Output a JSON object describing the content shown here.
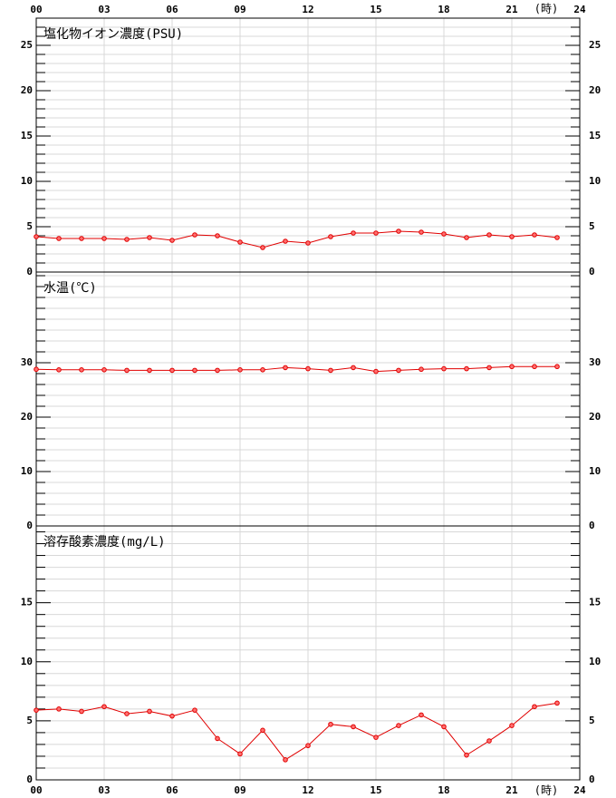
{
  "chart_data": [
    {
      "type": "line",
      "title": "塩化物イオン濃度(PSU)",
      "x_unit": "(時)",
      "xlim": [
        0,
        24
      ],
      "xticks": [
        {
          "value": 0,
          "label": "00"
        },
        {
          "value": 3,
          "label": "03"
        },
        {
          "value": 6,
          "label": "06"
        },
        {
          "value": 9,
          "label": "09"
        },
        {
          "value": 12,
          "label": "12"
        },
        {
          "value": 15,
          "label": "15"
        },
        {
          "value": 18,
          "label": "18"
        },
        {
          "value": 21,
          "label": "21"
        },
        {
          "value": 24,
          "label": "24"
        }
      ],
      "x": [
        0,
        1,
        2,
        3,
        4,
        5,
        6,
        7,
        8,
        9,
        10,
        11,
        12,
        13,
        14,
        15,
        16,
        17,
        18,
        19,
        20,
        21,
        22,
        23
      ],
      "series": [
        {
          "color": "#e00000",
          "values": [
            3.9,
            3.7,
            3.7,
            3.7,
            3.6,
            3.8,
            3.5,
            4.1,
            4.0,
            3.3,
            2.7,
            3.4,
            3.2,
            3.9,
            4.3,
            4.3,
            4.5,
            4.4,
            4.2,
            3.8,
            4.1,
            3.9,
            4.1,
            3.8
          ]
        }
      ],
      "ylim": [
        0,
        28
      ],
      "yticks": [
        0,
        5,
        10,
        15,
        20,
        25
      ],
      "minor_yticks": [
        1,
        2,
        3,
        4,
        6,
        7,
        8,
        9,
        11,
        12,
        13,
        14,
        16,
        17,
        18,
        19,
        21,
        22,
        23,
        24,
        26,
        27
      ],
      "grid": true
    },
    {
      "type": "line",
      "title": "水温(℃)",
      "x": [
        0,
        1,
        2,
        3,
        4,
        5,
        6,
        7,
        8,
        9,
        10,
        11,
        12,
        13,
        14,
        15,
        16,
        17,
        18,
        19,
        20,
        21,
        22,
        23
      ],
      "series": [
        {
          "color": "#e00000",
          "values": [
            28.8,
            28.7,
            28.7,
            28.7,
            28.6,
            28.6,
            28.6,
            28.6,
            28.6,
            28.7,
            28.7,
            29.1,
            28.9,
            28.6,
            29.1,
            28.4,
            28.6,
            28.8,
            28.9,
            28.9,
            29.1,
            29.3,
            29.3,
            29.3
          ]
        }
      ],
      "ylim": [
        0,
        46.67
      ],
      "yticks": [
        0,
        10,
        20,
        30
      ],
      "minor_yticks": [
        2,
        4,
        6,
        8,
        12,
        14,
        16,
        18,
        22,
        24,
        26,
        28,
        32,
        34,
        36,
        38,
        40,
        42,
        44,
        46
      ],
      "grid": true
    },
    {
      "type": "line",
      "title": "溶存酸素濃度(mg/L)",
      "x": [
        0,
        1,
        2,
        3,
        4,
        5,
        6,
        7,
        8,
        9,
        10,
        11,
        12,
        13,
        14,
        15,
        16,
        17,
        18,
        19,
        20,
        21,
        22,
        23
      ],
      "series": [
        {
          "color": "#e00000",
          "values": [
            5.9,
            6.0,
            5.8,
            6.2,
            5.6,
            5.8,
            5.4,
            5.9,
            3.5,
            2.2,
            4.2,
            1.7,
            2.9,
            4.7,
            4.5,
            3.6,
            4.6,
            5.5,
            4.5,
            2.1,
            3.3,
            4.6,
            6.2,
            6.5
          ]
        }
      ],
      "ylim": [
        0,
        21.5
      ],
      "yticks": [
        0,
        5,
        10,
        15
      ],
      "minor_yticks": [
        1,
        2,
        3,
        4,
        6,
        7,
        8,
        9,
        11,
        12,
        13,
        14,
        16,
        17,
        18,
        19,
        20,
        21
      ],
      "grid": true
    }
  ]
}
